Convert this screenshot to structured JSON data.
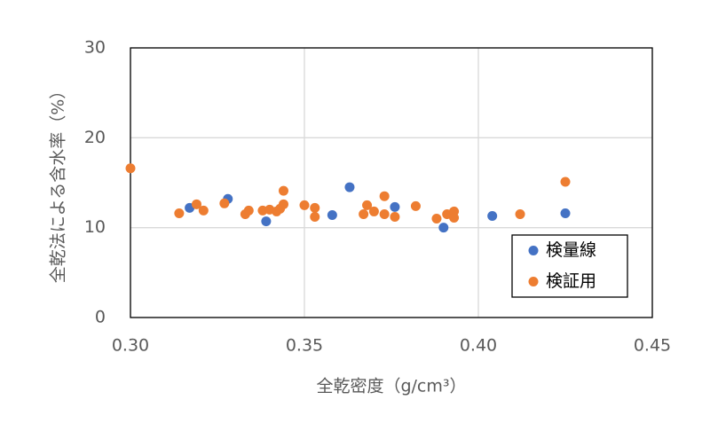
{
  "chart_data": {
    "type": "scatter",
    "x_label": "全乾密度（g/cm³）",
    "y_label": "全乾法による含水率（%）",
    "xlim": [
      0.3,
      0.45
    ],
    "xticks": [
      {
        "value": 0.3,
        "label": "0.30"
      },
      {
        "value": 0.35,
        "label": "0.35"
      },
      {
        "value": 0.4,
        "label": "0.40"
      },
      {
        "value": 0.45,
        "label": "0.45"
      }
    ],
    "ylim": [
      0,
      30
    ],
    "yticks": [
      0,
      10,
      20,
      30
    ],
    "grid": true,
    "legend": "lower-right",
    "series": [
      {
        "name": "検量線",
        "color": "#4472c4",
        "x": [
          0.317,
          0.328,
          0.339,
          0.363,
          0.358,
          0.376,
          0.39,
          0.404,
          0.425
        ],
        "values": [
          12.2,
          13.2,
          10.7,
          14.5,
          11.4,
          12.3,
          10.0,
          11.3,
          11.6
        ]
      },
      {
        "name": "検証用",
        "color": "#ed7d31",
        "x": [
          0.3,
          0.314,
          0.319,
          0.321,
          0.327,
          0.333,
          0.334,
          0.338,
          0.34,
          0.342,
          0.343,
          0.344,
          0.344,
          0.35,
          0.353,
          0.353,
          0.367,
          0.368,
          0.37,
          0.373,
          0.373,
          0.376,
          0.382,
          0.388,
          0.391,
          0.393,
          0.393,
          0.412,
          0.425
        ],
        "values": [
          16.6,
          11.6,
          12.6,
          11.9,
          12.7,
          11.5,
          11.9,
          11.9,
          12.0,
          11.8,
          12.1,
          12.6,
          14.1,
          12.5,
          11.2,
          12.2,
          11.5,
          12.5,
          11.8,
          13.5,
          11.5,
          11.2,
          12.4,
          11.0,
          11.5,
          11.8,
          11.1,
          11.5,
          15.1
        ]
      }
    ]
  }
}
